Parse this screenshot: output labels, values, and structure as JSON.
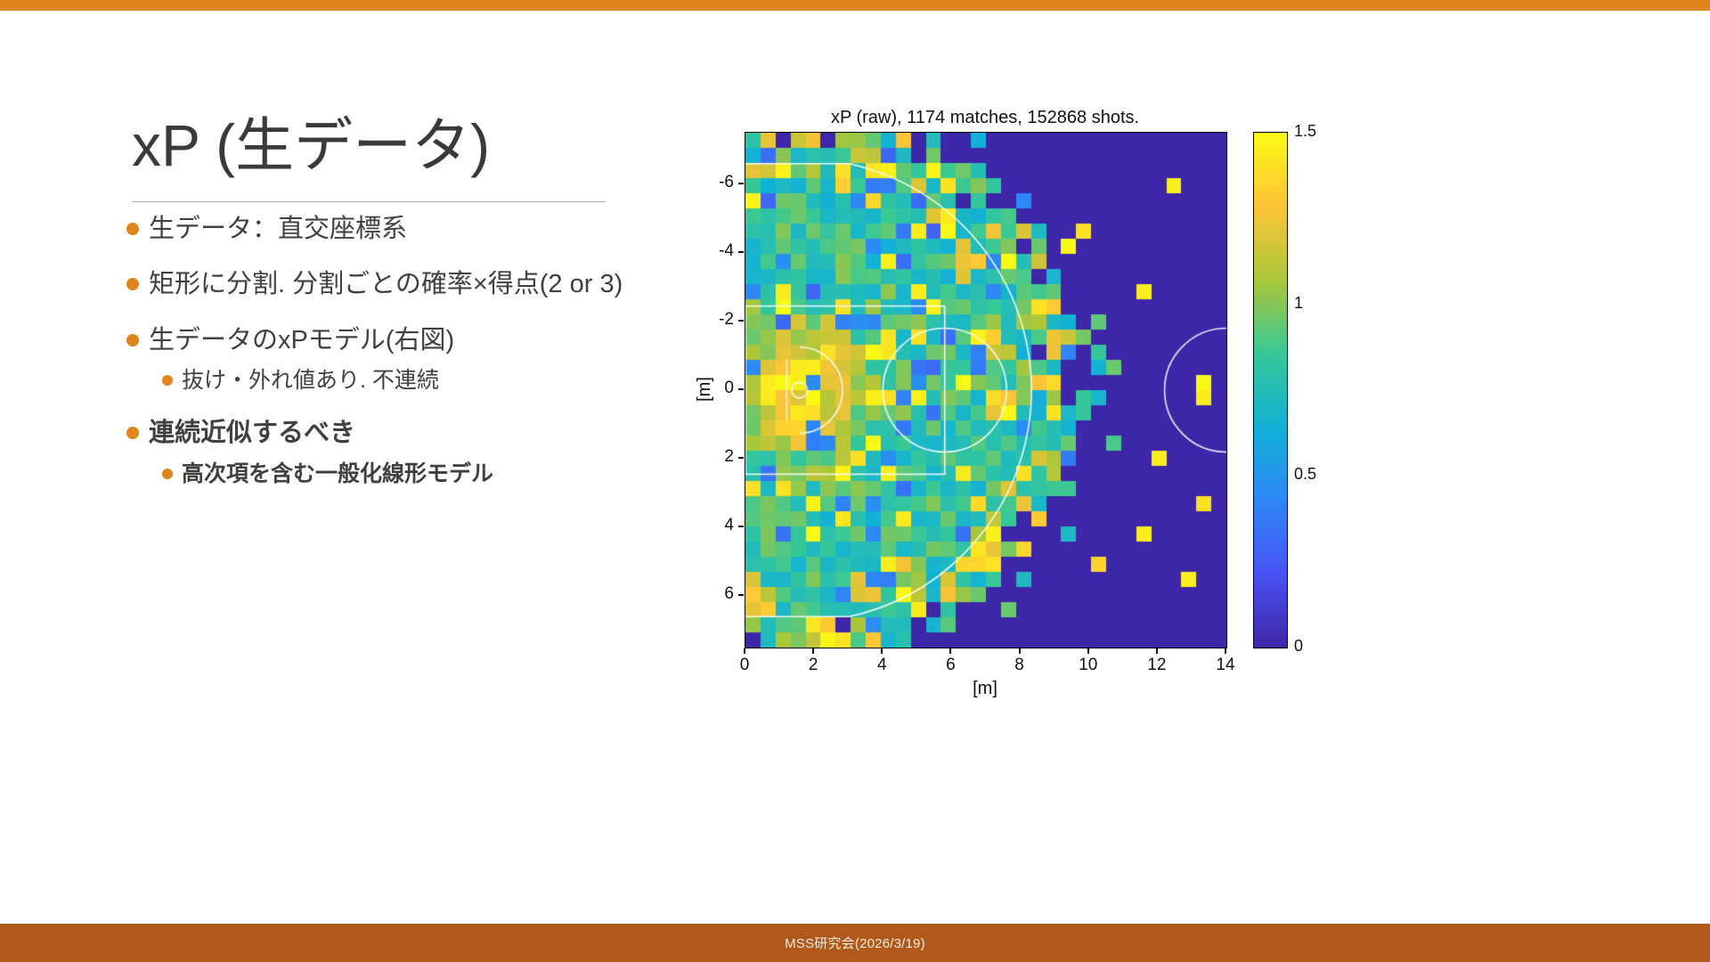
{
  "slide": {
    "title": "xP (生データ)",
    "bullets": [
      {
        "text": "生データ：直交座標系",
        "level": 1,
        "bold": false
      },
      {
        "text": "矩形に分割. 分割ごとの確率×得点(2 or 3)",
        "level": 1,
        "bold": false
      },
      {
        "text": "生データのxPモデル(右図)",
        "level": 1,
        "bold": false
      },
      {
        "text": "抜け・外れ値あり. 不連続",
        "level": 2,
        "bold": false
      },
      {
        "text": "連続近似するべき",
        "level": 1,
        "bold": true
      },
      {
        "text": "高次項を含む一般化線形モデル",
        "level": 2,
        "bold": true
      }
    ],
    "footer_text": "MSS研究会(2026/3/19)"
  },
  "colors": {
    "accent": "#E2841C",
    "top_bar": "#E2841C",
    "footer_bar": "#B0591B",
    "title_text": "#3A3A3A",
    "body_text": "#404040"
  },
  "chart_data": {
    "type": "heatmap",
    "title": "xP (raw), 1174 matches, 152868 shots.",
    "xlabel": "[m]",
    "ylabel": "[m]",
    "xlim": [
      0,
      14
    ],
    "ylim": [
      -7.5,
      7.5
    ],
    "x_ticks": [
      0,
      2,
      4,
      6,
      8,
      10,
      12,
      14
    ],
    "y_ticks": [
      -6,
      -4,
      -2,
      0,
      2,
      4,
      6
    ],
    "colorbar": {
      "min": 0,
      "max": 1.5,
      "ticks": [
        0,
        0.5,
        1,
        1.5
      ]
    },
    "colormap": "parula",
    "grid": {
      "nx": 32,
      "ny": 34
    },
    "background_value": 0,
    "hoop": {
      "x": 1.575,
      "y": 0
    },
    "hotspot": {
      "center_x": 1.6,
      "center_y": 0,
      "peak_value": 1.4,
      "sigma": 2.0
    },
    "data_extent_radius": 6.9,
    "data_fade_radius": 9.4,
    "outliers": [
      {
        "x": 12.3,
        "y": -5.9,
        "v": 1.45
      },
      {
        "x": 9.7,
        "y": -4.5,
        "v": 1.4
      },
      {
        "x": 11.5,
        "y": -2.9,
        "v": 1.45
      },
      {
        "x": 13.2,
        "y": -0.2,
        "v": 1.5
      },
      {
        "x": 13.2,
        "y": 0.2,
        "v": 1.45
      },
      {
        "x": 12.0,
        "y": 1.9,
        "v": 1.45
      },
      {
        "x": 13.4,
        "y": 3.4,
        "v": 1.4
      },
      {
        "x": 11.7,
        "y": 4.0,
        "v": 1.45
      },
      {
        "x": 13.0,
        "y": 5.5,
        "v": 1.45
      },
      {
        "x": 10.4,
        "y": 5.2,
        "v": 1.35
      }
    ],
    "court": {
      "three_point_radius": 6.75,
      "three_point_side_y": 6.6,
      "key_width": 4.9,
      "key_length": 5.8,
      "ft_circle_radius": 1.8,
      "hoop_radius": 0.23,
      "backboard_x": 1.2,
      "backboard_halfwidth": 0.9,
      "restricted_radius": 1.25,
      "center_circle_radius": 1.8
    },
    "seed": 42
  }
}
